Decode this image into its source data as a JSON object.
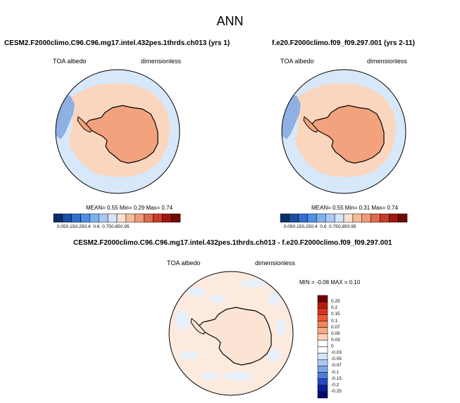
{
  "page": {
    "title": "ANN"
  },
  "colors": {
    "bg_ocean": "#d7e8fb",
    "light_orange": "#fbd6bf",
    "mid_orange": "#f3a27e",
    "blue_land": "#8fb0e3",
    "coast": "#000000"
  },
  "panels": [
    {
      "title": "CESM2.F2000climo.C96.C96.mg17.intel.432pes.1thrds.ch013 (yrs 1)",
      "left_label": "TOA albedo",
      "right_label": "dimensionless",
      "stats_text": "MEAN=   0.55  Min=   0.29  Max=   0.74",
      "colorbar_labels": [
        "0.05",
        "0.15",
        "0.25",
        "0.4",
        "0.6",
        "0.75",
        "0.85",
        "0.95"
      ]
    },
    {
      "title": "f.e20.F2000climo.f09_f09.297.001 (yrs 2-11)",
      "left_label": "TOA albedo",
      "right_label": "dimensionless",
      "stats_text": "MEAN=   0.55  Min=   0.31  Max=   0.74",
      "colorbar_labels": [
        "0.05",
        "0.15",
        "0.25",
        "0.4",
        "0.6",
        "0.75",
        "0.85",
        "0.95"
      ]
    },
    {
      "title": "CESM2.F2000climo.C96.C96.mg17.intel.432pes.1thrds.ch013 - f.e20.F2000climo.f09_f09.297.001",
      "left_label": "TOA albedo",
      "right_label": "dimensionless",
      "stats_text": "MIN =  -0.08 MAX =   0.10",
      "colorbar_labels": [
        "0.25",
        "0.2",
        "0.15",
        "0.1",
        "0.07",
        "0.05",
        "0.03",
        "0",
        "-0.03",
        "-0.05",
        "-0.07",
        "-0.1",
        "-0.15",
        "-0.2",
        "-0.25"
      ]
    }
  ],
  "colorbar_abs": [
    "#08306b",
    "#1a4fa3",
    "#2f6fd0",
    "#4d8fe6",
    "#7fb0f0",
    "#a9cbf5",
    "#d5e6fb",
    "#fde1cf",
    "#f7bb9a",
    "#f09a76",
    "#e06a4c",
    "#c73c2b",
    "#a4150f",
    "#700a08"
  ],
  "colorbar_diff": [
    "#6f0000",
    "#b11b0f",
    "#d7321f",
    "#eb5a35",
    "#f1865c",
    "#f6aa82",
    "#fbd3b8",
    "#ffffff",
    "#ffffff",
    "#d6e6fa",
    "#a9c8f2",
    "#7ea6e8",
    "#4d7fdc",
    "#2449c6",
    "#0b1e9a",
    "#050b6d"
  ]
}
